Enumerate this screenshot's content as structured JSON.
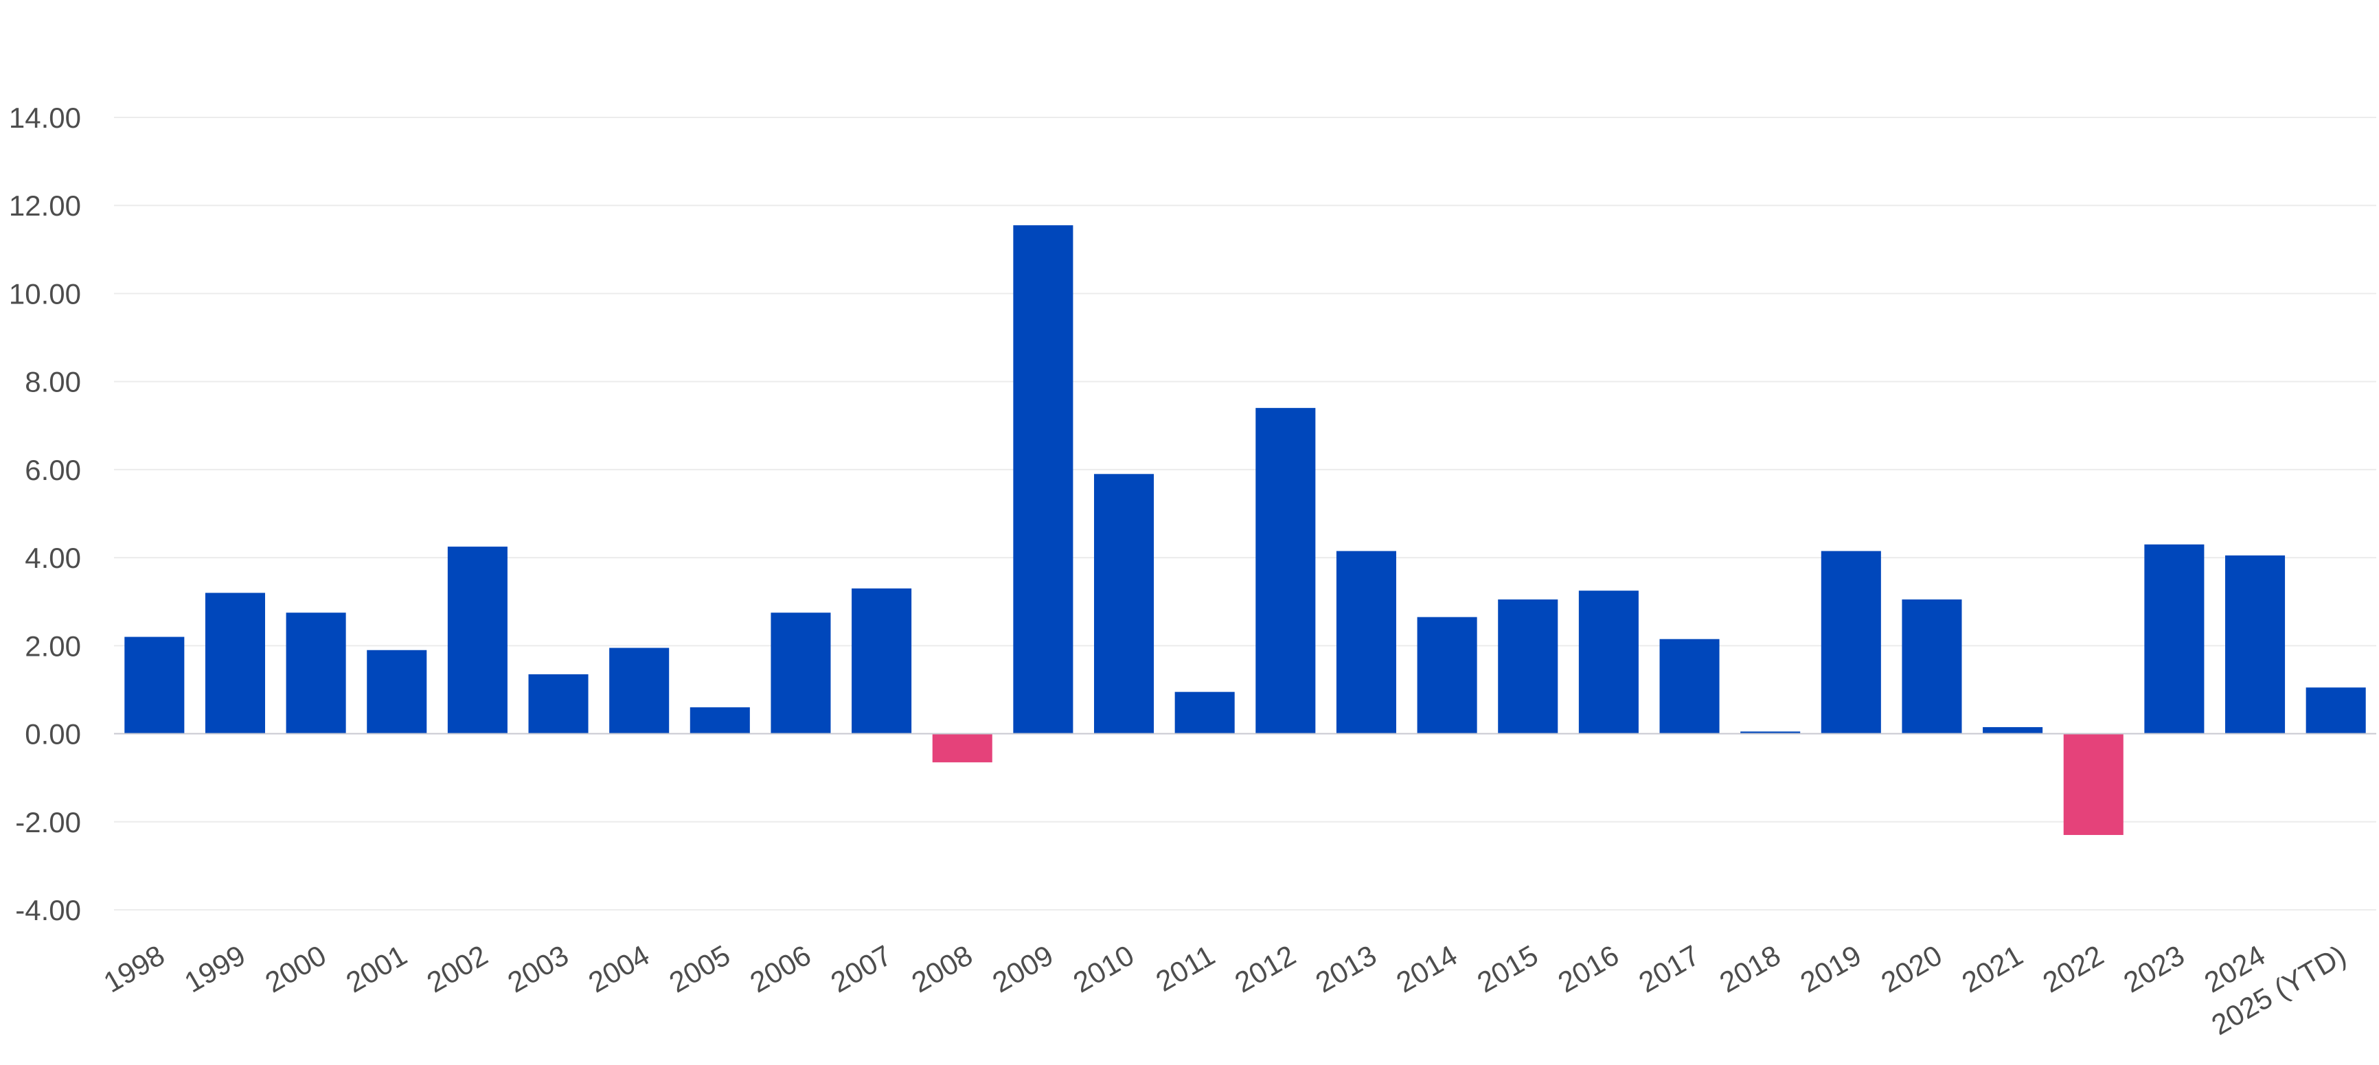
{
  "chart_data": {
    "type": "bar",
    "title": "",
    "xlabel": "",
    "ylabel": "",
    "categories": [
      "1998",
      "1999",
      "2000",
      "2001",
      "2002",
      "2003",
      "2004",
      "2005",
      "2006",
      "2007",
      "2008",
      "2009",
      "2010",
      "2011",
      "2012",
      "2013",
      "2014",
      "2015",
      "2016",
      "2017",
      "2018",
      "2019",
      "2020",
      "2021",
      "2022",
      "2023",
      "2024",
      "2025 (YTD)"
    ],
    "values": [
      2.2,
      3.2,
      2.75,
      1.9,
      4.25,
      1.35,
      1.95,
      0.6,
      2.75,
      3.3,
      -0.65,
      11.55,
      5.9,
      0.95,
      7.4,
      4.15,
      2.65,
      3.05,
      3.25,
      2.15,
      0.05,
      4.15,
      3.05,
      0.15,
      -2.3,
      4.3,
      4.05,
      1.05
    ],
    "ylim": [
      -4,
      14
    ],
    "yticks": [
      -4,
      -2,
      0,
      2,
      4,
      6,
      8,
      10,
      12,
      14
    ],
    "ytick_labels": [
      "-4.00",
      "-2.00",
      "0.00",
      "2.00",
      "4.00",
      "6.00",
      "8.00",
      "10.00",
      "12.00",
      "14.00"
    ],
    "grid": true,
    "colors": {
      "positive": "#0047bb",
      "negative": "#e5427a"
    }
  }
}
